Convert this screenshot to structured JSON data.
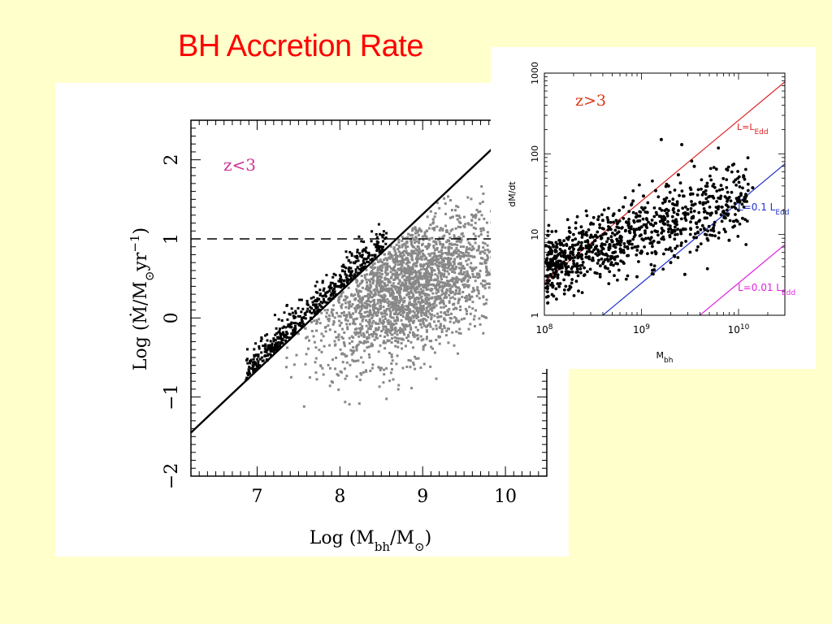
{
  "title": "BH Accretion Rate",
  "chart_data": [
    {
      "type": "scatter",
      "annotation": "z<3",
      "xlabel": "Log (M_bh/M_⊙)",
      "ylabel": "Log (Ṁ/M_⊙yr⁻¹)",
      "xlim": [
        6.2,
        10.5
      ],
      "ylim": [
        -2.0,
        2.5
      ],
      "xticks": [
        7,
        8,
        9,
        10
      ],
      "yticks": [
        -2,
        -1,
        0,
        1,
        2
      ],
      "xtick_labels": [
        "7",
        "8",
        "9",
        "10"
      ],
      "ytick_labels": [
        "−2",
        "−1",
        "0",
        "1",
        "2"
      ],
      "lines": [
        {
          "style": "solid",
          "color": "#000000",
          "x": [
            6.2,
            9.85
          ],
          "y": [
            -1.45,
            2.15
          ]
        },
        {
          "style": "dashed",
          "color": "#000000",
          "x": [
            6.2,
            10.5
          ],
          "y": [
            1.0,
            1.0
          ]
        }
      ],
      "point_clouds": [
        {
          "color": "#888888",
          "x_range": [
            7.3,
            10.4
          ],
          "y_range": [
            -1.2,
            1.7
          ],
          "center": [
            8.8,
            0.4
          ]
        },
        {
          "color": "#000000",
          "x_range": [
            6.8,
            8.6
          ],
          "y_range": [
            -1.1,
            1.6
          ],
          "trend": "along solid line"
        }
      ]
    },
    {
      "type": "scatter",
      "annotation": "z>3",
      "xlabel": "M_bh",
      "ylabel": "dM/dt",
      "xscale": "log",
      "yscale": "log",
      "xlim": [
        100000000,
        30000000000
      ],
      "ylim": [
        1,
        1000
      ],
      "xtick_labels": [
        "10^8",
        "10^9",
        "10^10"
      ],
      "ytick_labels": [
        "1",
        "10",
        "100",
        "1000"
      ],
      "lines": [
        {
          "label": "L=L_Edd",
          "color": "#dd2222",
          "x": [
            100000000,
            30000000000
          ],
          "y": [
            2.6,
            780
          ]
        },
        {
          "label": "L=0.1 L_Edd",
          "color": "#2233cc",
          "x": [
            400000000,
            30000000000
          ],
          "y": [
            1,
            75
          ]
        },
        {
          "label": "L=0.01 L_Edd",
          "color": "#dd22dd",
          "x": [
            4000000000,
            30000000000
          ],
          "y": [
            1,
            7.5
          ]
        }
      ],
      "line_labels": [
        {
          "main": "L=L",
          "sub": "Edd"
        },
        {
          "main": "L=0.1 L",
          "sub": "Edd"
        },
        {
          "main": "L=0.01 L",
          "sub": "Edd"
        }
      ],
      "points": [
        [
          120000000,
          6.2
        ],
        [
          130000000,
          5.1
        ],
        [
          150000000,
          7.8
        ],
        [
          160000000,
          4.4
        ],
        [
          180000000,
          9.3
        ],
        [
          200000000,
          6.6
        ],
        [
          220000000,
          5.5
        ],
        [
          250000000,
          11.0
        ],
        [
          270000000,
          7.2
        ],
        [
          300000000,
          13.5
        ],
        [
          330000000,
          8.4
        ],
        [
          360000000,
          6.1
        ],
        [
          400000000,
          15.0
        ],
        [
          430000000,
          10.2
        ],
        [
          470000000,
          7.5
        ],
        [
          520000000,
          18.0
        ],
        [
          560000000,
          12.4
        ],
        [
          600000000,
          9.1
        ],
        [
          650000000,
          22.0
        ],
        [
          700000000,
          14.3
        ],
        [
          760000000,
          10.6
        ],
        [
          820000000,
          26.0
        ],
        [
          880000000,
          16.5
        ],
        [
          950000000,
          12.0
        ],
        [
          1050000000,
          30.0
        ],
        [
          1150000000,
          18.8
        ],
        [
          1250000000,
          13.4
        ],
        [
          1400000000,
          35.0
        ],
        [
          1550000000,
          21.0
        ],
        [
          1700000000,
          15.2
        ],
        [
          1900000000,
          40.0
        ],
        [
          2100000000,
          24.0
        ],
        [
          2400000000,
          55.0
        ],
        [
          2700000000,
          30.0
        ],
        [
          3000000000,
          18.0
        ],
        [
          3500000000,
          70.0
        ],
        [
          4000000000,
          25.0
        ],
        [
          4500000000,
          16.0
        ],
        [
          5500000000,
          12.0
        ],
        [
          6500000000,
          28.0
        ],
        [
          8000000000,
          8.5
        ],
        [
          10000000000,
          20.0
        ],
        [
          12000000000,
          30.0
        ],
        [
          14000000000,
          38.0
        ],
        [
          900000000,
          3.0
        ],
        [
          1300000000,
          3.6
        ],
        [
          2000000000,
          4.5
        ],
        [
          2800000000,
          3.2
        ],
        [
          1600000000,
          150.0
        ],
        [
          2600000000,
          130.0
        ]
      ]
    }
  ]
}
